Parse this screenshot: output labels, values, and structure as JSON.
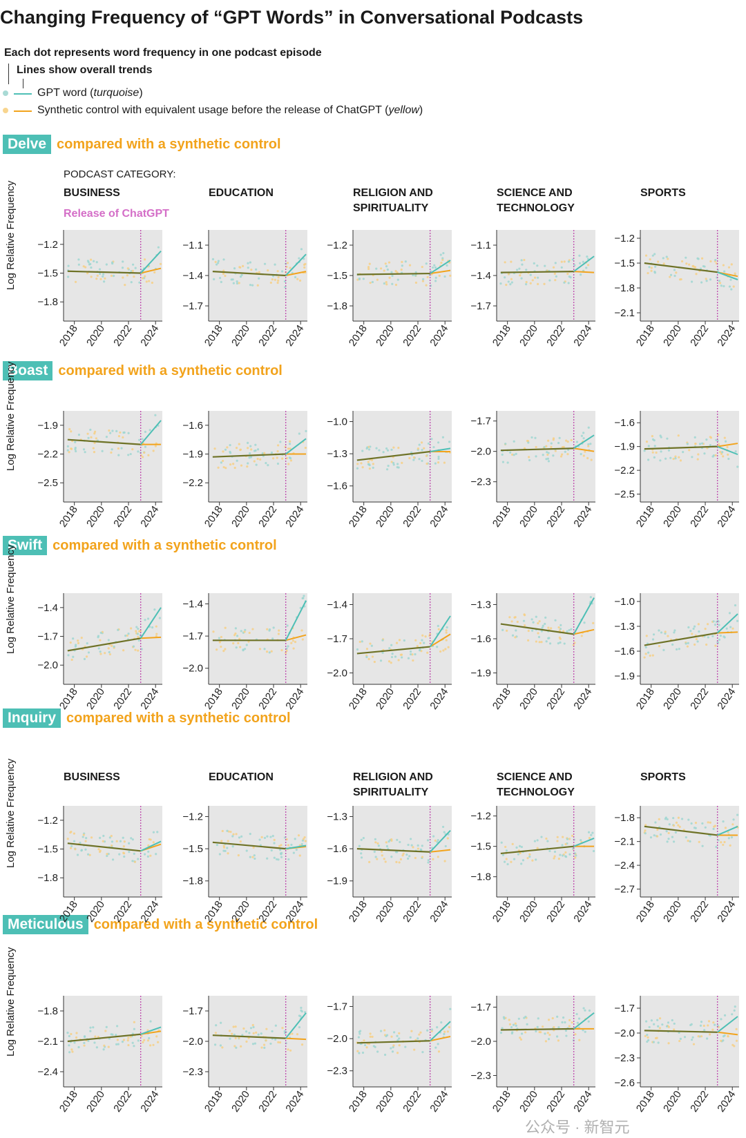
{
  "title": "Changing Frequency of “GPT Words” in Conversational Podcasts",
  "legend": {
    "line1": "Each dot represents word frequency in one podcast episode",
    "line2": "Lines show overall trends",
    "gpt_prefix": "GPT word (",
    "gpt_italic": "turquoise",
    "gpt_suffix": ")",
    "synth_prefix": "Synthetic control with equivalent usage before the release of ChatGPT (",
    "synth_italic": "yellow",
    "synth_suffix": ")",
    "colors": {
      "gpt": "#4dbfb5",
      "synthetic": "#f2a31c",
      "release": "#c050b0",
      "pre_trend": "#6e7226"
    }
  },
  "section_suffix": "compared with a synthetic control",
  "podcast_category_label": "PODCAST CATEGORY:",
  "release_label": "Release of ChatGPT",
  "y_axis_label": "Log Relative Frequency",
  "categories": [
    "BUSINESS",
    "EDUCATION",
    "RELIGION AND\nSPIRITUALITY",
    "SCIENCE AND\nTECHNOLOGY",
    "SPORTS"
  ],
  "watermark": "公众号 · 新智元",
  "chart_data": [
    {
      "type": "line",
      "word": "Delve",
      "x_ticks": [
        "2018",
        "2020",
        "2022",
        "2024"
      ],
      "release_x": 2022.9,
      "panels": [
        {
          "category": "BUSINESS",
          "y_ticks": [
            "−1.2",
            "−1.5",
            "−1.8"
          ],
          "ylim": [
            -2.0,
            -1.05
          ],
          "pre": [
            -1.48,
            -1.5
          ],
          "gpt_end": -1.27,
          "synth_end": -1.45
        },
        {
          "category": "EDUCATION",
          "y_ticks": [
            "−1.1",
            "−1.4",
            "−1.7"
          ],
          "ylim": [
            -1.85,
            -0.95
          ],
          "pre": [
            -1.36,
            -1.4
          ],
          "gpt_end": -1.19,
          "synth_end": -1.36
        },
        {
          "category": "RELIGION AND SPIRITUALITY",
          "y_ticks": [
            "−1.2",
            "−1.5",
            "−1.8"
          ],
          "ylim": [
            -1.95,
            -1.05
          ],
          "pre": [
            -1.49,
            -1.48
          ],
          "gpt_end": -1.35,
          "synth_end": -1.45
        },
        {
          "category": "SCIENCE AND TECHNOLOGY",
          "y_ticks": [
            "−1.1",
            "−1.4",
            "−1.7"
          ],
          "ylim": [
            -1.85,
            -0.95
          ],
          "pre": [
            -1.37,
            -1.36
          ],
          "gpt_end": -1.21,
          "synth_end": -1.37
        },
        {
          "category": "SPORTS",
          "y_ticks": [
            "−1.2",
            "−1.5",
            "−1.8",
            "−2.1"
          ],
          "ylim": [
            -2.2,
            -1.1
          ],
          "pre": [
            -1.5,
            -1.61
          ],
          "gpt_end": -1.7,
          "synth_end": -1.66
        }
      ]
    },
    {
      "type": "line",
      "word": "Boast",
      "x_ticks": [
        "2018",
        "2020",
        "2022",
        "2024"
      ],
      "release_x": 2022.9,
      "panels": [
        {
          "category": "BUSINESS",
          "y_ticks": [
            "−1.9",
            "−2.2",
            "−2.5"
          ],
          "ylim": [
            -2.7,
            -1.75
          ],
          "pre": [
            -2.05,
            -2.1
          ],
          "gpt_end": -1.85,
          "synth_end": -2.1
        },
        {
          "category": "EDUCATION",
          "y_ticks": [
            "−1.6",
            "−1.9",
            "−2.2"
          ],
          "ylim": [
            -2.4,
            -1.45
          ],
          "pre": [
            -1.93,
            -1.9
          ],
          "gpt_end": -1.74,
          "synth_end": -1.9
        },
        {
          "category": "RELIGION AND SPIRITUALITY",
          "y_ticks": [
            "−1.0",
            "−1.3",
            "−1.6"
          ],
          "ylim": [
            -1.75,
            -0.9
          ],
          "pre": [
            -1.36,
            -1.28
          ],
          "gpt_end": -1.25,
          "synth_end": -1.28
        },
        {
          "category": "SCIENCE AND TECHNOLOGY",
          "y_ticks": [
            "−1.7",
            "−2.0",
            "−2.3"
          ],
          "ylim": [
            -2.5,
            -1.6
          ],
          "pre": [
            -1.99,
            -1.97
          ],
          "gpt_end": -1.84,
          "synth_end": -2.0
        },
        {
          "category": "SPORTS",
          "y_ticks": [
            "−1.6",
            "−1.9",
            "−2.2",
            "−2.5"
          ],
          "ylim": [
            -2.6,
            -1.45
          ],
          "pre": [
            -1.93,
            -1.9
          ],
          "gpt_end": -2.0,
          "synth_end": -1.86
        }
      ]
    },
    {
      "type": "line",
      "word": "Swift",
      "x_ticks": [
        "2018",
        "2020",
        "2022",
        "2024"
      ],
      "release_x": 2022.9,
      "panels": [
        {
          "category": "BUSINESS",
          "y_ticks": [
            "−1.4",
            "−1.7",
            "−2.0"
          ],
          "ylim": [
            -2.2,
            -1.25
          ],
          "pre": [
            -1.85,
            -1.72
          ],
          "gpt_end": -1.4,
          "synth_end": -1.71
        },
        {
          "category": "EDUCATION",
          "y_ticks": [
            "−1.4",
            "−1.7",
            "−2.0"
          ],
          "ylim": [
            -2.15,
            -1.3
          ],
          "pre": [
            -1.74,
            -1.74
          ],
          "gpt_end": -1.37,
          "synth_end": -1.69
        },
        {
          "category": "RELIGION AND SPIRITUALITY",
          "y_ticks": [
            "−1.4",
            "−1.7",
            "−2.0"
          ],
          "ylim": [
            -2.1,
            -1.3
          ],
          "pre": [
            -1.83,
            -1.77
          ],
          "gpt_end": -1.5,
          "synth_end": -1.66
        },
        {
          "category": "SCIENCE AND TECHNOLOGY",
          "y_ticks": [
            "−1.3",
            "−1.6",
            "−1.9"
          ],
          "ylim": [
            -2.0,
            -1.2
          ],
          "pre": [
            -1.47,
            -1.56
          ],
          "gpt_end": -1.24,
          "synth_end": -1.52
        },
        {
          "category": "SPORTS",
          "y_ticks": [
            "−1.0",
            "−1.3",
            "−1.6",
            "−1.9"
          ],
          "ylim": [
            -2.0,
            -0.9
          ],
          "pre": [
            -1.53,
            -1.38
          ],
          "gpt_end": -1.15,
          "synth_end": -1.37
        }
      ]
    },
    {
      "type": "line",
      "word": "Inquiry",
      "x_ticks": [
        "2018",
        "2020",
        "2022",
        "2024"
      ],
      "release_x": 2022.9,
      "panels": [
        {
          "category": "BUSINESS",
          "y_ticks": [
            "−1.2",
            "−1.5",
            "−1.8"
          ],
          "ylim": [
            -2.0,
            -1.05
          ],
          "pre": [
            -1.44,
            -1.52
          ],
          "gpt_end": -1.42,
          "synth_end": -1.45
        },
        {
          "category": "EDUCATION",
          "y_ticks": [
            "−1.2",
            "−1.5",
            "−1.8"
          ],
          "ylim": [
            -1.95,
            -1.1
          ],
          "pre": [
            -1.44,
            -1.5
          ],
          "gpt_end": -1.47,
          "synth_end": -1.48
        },
        {
          "category": "RELIGION AND SPIRITUALITY",
          "y_ticks": [
            "−1.3",
            "−1.6",
            "−1.9"
          ],
          "ylim": [
            -2.05,
            -1.2
          ],
          "pre": [
            -1.6,
            -1.63
          ],
          "gpt_end": -1.43,
          "synth_end": -1.61
        },
        {
          "category": "SCIENCE AND TECHNOLOGY",
          "y_ticks": [
            "−1.2",
            "−1.5",
            "−1.8"
          ],
          "ylim": [
            -2.0,
            -1.1
          ],
          "pre": [
            -1.57,
            -1.5
          ],
          "gpt_end": -1.42,
          "synth_end": -1.5
        },
        {
          "category": "SPORTS",
          "y_ticks": [
            "−1.8",
            "−2.1",
            "−2.4",
            "−2.7"
          ],
          "ylim": [
            -2.8,
            -1.65
          ],
          "pre": [
            -1.91,
            -2.02
          ],
          "gpt_end": -1.91,
          "synth_end": -2.02
        }
      ]
    },
    {
      "type": "line",
      "word": "Meticulous",
      "x_ticks": [
        "2018",
        "2020",
        "2022",
        "2024"
      ],
      "release_x": 2022.9,
      "panels": [
        {
          "category": "BUSINESS",
          "y_ticks": [
            "−1.8",
            "−2.1",
            "−2.4"
          ],
          "ylim": [
            -2.55,
            -1.65
          ],
          "pre": [
            -2.1,
            -2.03
          ],
          "gpt_end": -1.96,
          "synth_end": -2.0
        },
        {
          "category": "EDUCATION",
          "y_ticks": [
            "−1.7",
            "−2.0",
            "−2.3"
          ],
          "ylim": [
            -2.45,
            -1.55
          ],
          "pre": [
            -1.94,
            -1.97
          ],
          "gpt_end": -1.72,
          "synth_end": -1.98
        },
        {
          "category": "RELIGION AND SPIRITUALITY",
          "y_ticks": [
            "−1.7",
            "−2.0",
            "−2.3"
          ],
          "ylim": [
            -2.45,
            -1.6
          ],
          "pre": [
            -2.04,
            -2.02
          ],
          "gpt_end": -1.84,
          "synth_end": -1.98
        },
        {
          "category": "SCIENCE AND TECHNOLOGY",
          "y_ticks": [
            "−1.7",
            "−2.0",
            "−2.3"
          ],
          "ylim": [
            -2.4,
            -1.6
          ],
          "pre": [
            -1.9,
            -1.89
          ],
          "gpt_end": -1.75,
          "synth_end": -1.89
        },
        {
          "category": "SPORTS",
          "y_ticks": [
            "−1.7",
            "−2.0",
            "−2.3",
            "−2.6"
          ],
          "ylim": [
            -2.65,
            -1.55
          ],
          "pre": [
            -1.97,
            -1.99
          ],
          "gpt_end": -1.8,
          "synth_end": -2.02
        }
      ]
    }
  ]
}
